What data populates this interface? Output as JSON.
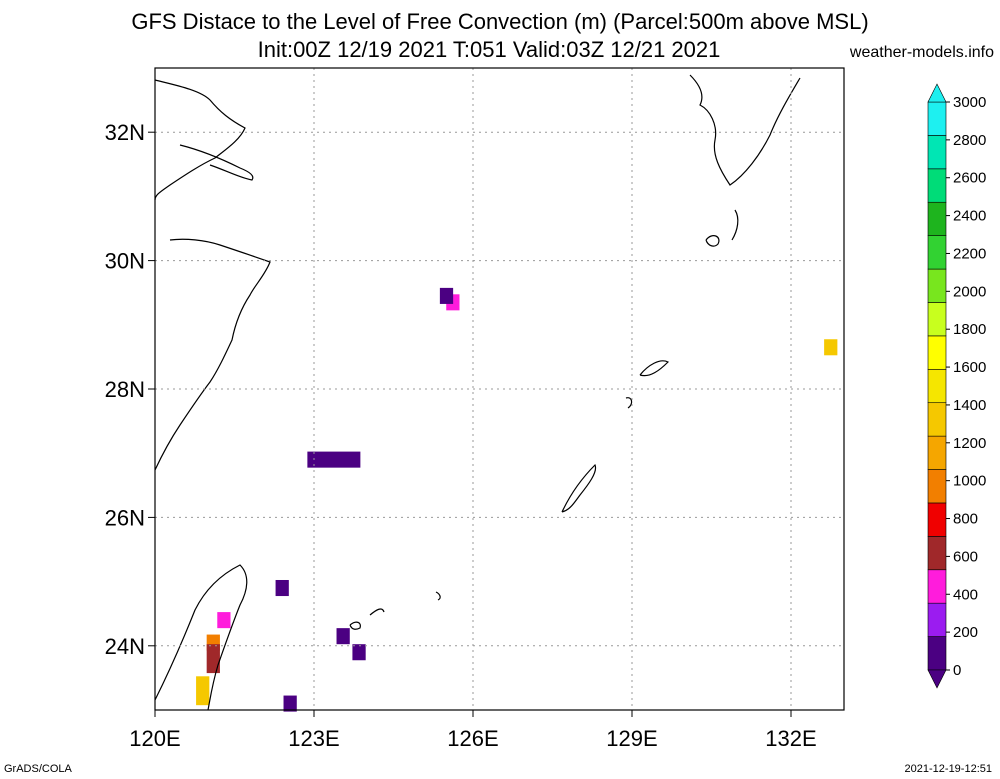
{
  "header": {
    "title": "GFS Distace to the Level of Free Convection (m) (Parcel:500m above MSL)",
    "subtitle": "Init:00Z 12/19 2021 T:051 Valid:03Z 12/21 2021",
    "site": "weather-models.info"
  },
  "footer": {
    "left": "GrADS/COLA",
    "right": "2021-12-19-12:51"
  },
  "map": {
    "lon_range": [
      120,
      133.0
    ],
    "lat_range": [
      23.0,
      33.0
    ],
    "lon_ticks": [
      {
        "value": 120,
        "label": "120E"
      },
      {
        "value": 123,
        "label": "123E"
      },
      {
        "value": 126,
        "label": "126E"
      },
      {
        "value": 129,
        "label": "129E"
      },
      {
        "value": 132,
        "label": "132E"
      }
    ],
    "lat_ticks": [
      {
        "value": 24,
        "label": "24N"
      },
      {
        "value": 26,
        "label": "26N"
      },
      {
        "value": 28,
        "label": "28N"
      },
      {
        "value": 30,
        "label": "30N"
      },
      {
        "value": 32,
        "label": "32N"
      }
    ],
    "grid": "dotted"
  },
  "colorbar": {
    "levels": [
      0,
      200,
      400,
      600,
      800,
      1000,
      1200,
      1400,
      1600,
      1800,
      2000,
      2200,
      2400,
      2600,
      2800,
      3000
    ],
    "labels": [
      "0",
      "200",
      "400",
      "600",
      "800",
      "1000",
      "1200",
      "1400",
      "1600",
      "1800",
      "2000",
      "2200",
      "2400",
      "2600",
      "2800",
      "3000"
    ],
    "colors": [
      "#4b0082",
      "#9b1cf0",
      "#ff1cdc",
      "#a0282a",
      "#f00000",
      "#f27f00",
      "#f5a600",
      "#f5c800",
      "#f5e600",
      "#ffff00",
      "#c8ff1e",
      "#78e61e",
      "#32d232",
      "#1eb41e",
      "#00dc78",
      "#00e6b4",
      "#1ef0f0"
    ],
    "below_color": "#4b0082",
    "above_color": "#1ef0f0"
  },
  "cells": [
    {
      "lon": 125.62,
      "lat": 29.35,
      "color": "#ff1cdc"
    },
    {
      "lon": 125.5,
      "lat": 29.45,
      "color": "#4b0082"
    },
    {
      "lon": 132.75,
      "lat": 28.65,
      "color": "#f5c800"
    },
    {
      "lon": 123.0,
      "lat": 26.9,
      "color": "#4b0082",
      "w": 1.0,
      "h": 0.25
    },
    {
      "lon": 122.4,
      "lat": 24.9,
      "color": "#4b0082"
    },
    {
      "lon": 121.3,
      "lat": 24.4,
      "color": "#ff1cdc"
    },
    {
      "lon": 123.55,
      "lat": 24.15,
      "color": "#4b0082"
    },
    {
      "lon": 123.85,
      "lat": 23.9,
      "color": "#4b0082"
    },
    {
      "lon": 122.55,
      "lat": 23.1,
      "color": "#4b0082"
    },
    {
      "lon": 121.1,
      "lat": 24.05,
      "color": "#f27f00",
      "h": 0.25
    },
    {
      "lon": 121.1,
      "lat": 23.7,
      "color": "#a0282a",
      "h": 0.45
    },
    {
      "lon": 120.9,
      "lat": 23.2,
      "color": "#f5c800",
      "h": 0.45
    }
  ]
}
